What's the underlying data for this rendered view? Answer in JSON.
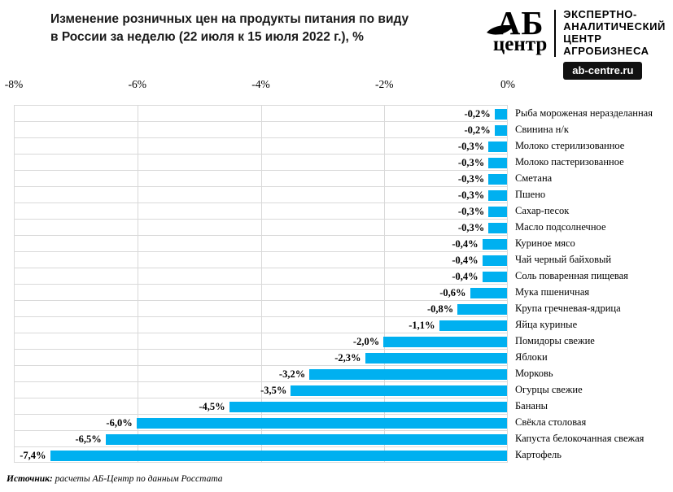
{
  "title": {
    "line1": "Изменение розничных цен на продукты питания по виду",
    "line2": "в России за неделю (22 июля к 15 июля 2022 г.), %"
  },
  "logo": {
    "abbr": "АБ",
    "subname": "центр",
    "tagline": [
      "ЭКСПЕРТНО-",
      "АНАЛИТИЧЕСКИЙ",
      "ЦЕНТР",
      "АГРОБИЗНЕСА"
    ],
    "site": "ab-centre.ru"
  },
  "axis": {
    "ticks": [
      "-8%",
      "-6%",
      "-4%",
      "-2%",
      "0%"
    ]
  },
  "chart_data": {
    "type": "bar",
    "orientation": "horizontal",
    "title": "Изменение розничных цен на продукты питания по виду в России за неделю (22 июля к 15 июля 2022 г.), %",
    "xlim": [
      -8,
      0
    ],
    "grid": true,
    "bar_color": "#00b0f0",
    "categories": [
      "Рыба мороженая неразделанная",
      "Свинина н/к",
      "Молоко стерилизованное",
      "Молоко пастеризованное",
      "Сметана",
      "Пшено",
      "Сахар-песок",
      "Масло подсолнечное",
      "Куриное мясо",
      "Чай черный байховый",
      "Соль поваренная пищевая",
      "Мука пшеничная",
      "Крупа гречневая-ядрица",
      "Яйца куриные",
      "Помидоры свежие",
      "Яблоки",
      "Морковь",
      "Огурцы свежие",
      "Бананы",
      "Свёкла столовая",
      "Капуста белокочанная свежая",
      "Картофель"
    ],
    "values": [
      -0.2,
      -0.2,
      -0.3,
      -0.3,
      -0.3,
      -0.3,
      -0.3,
      -0.3,
      -0.4,
      -0.4,
      -0.4,
      -0.6,
      -0.8,
      -1.1,
      -2.0,
      -2.3,
      -3.2,
      -3.5,
      -4.5,
      -6.0,
      -6.5,
      -7.4
    ],
    "value_labels": [
      "-0,2%",
      "-0,2%",
      "-0,3%",
      "-0,3%",
      "-0,3%",
      "-0,3%",
      "-0,3%",
      "-0,3%",
      "-0,4%",
      "-0,4%",
      "-0,4%",
      "-0,6%",
      "-0,8%",
      "-1,1%",
      "-2,0%",
      "-2,3%",
      "-3,2%",
      "-3,5%",
      "-4,5%",
      "-6,0%",
      "-6,5%",
      "-7,4%"
    ]
  },
  "source": {
    "prefix": "Источник:",
    "text": " расчеты АБ-Центр  по данным Росстата"
  }
}
